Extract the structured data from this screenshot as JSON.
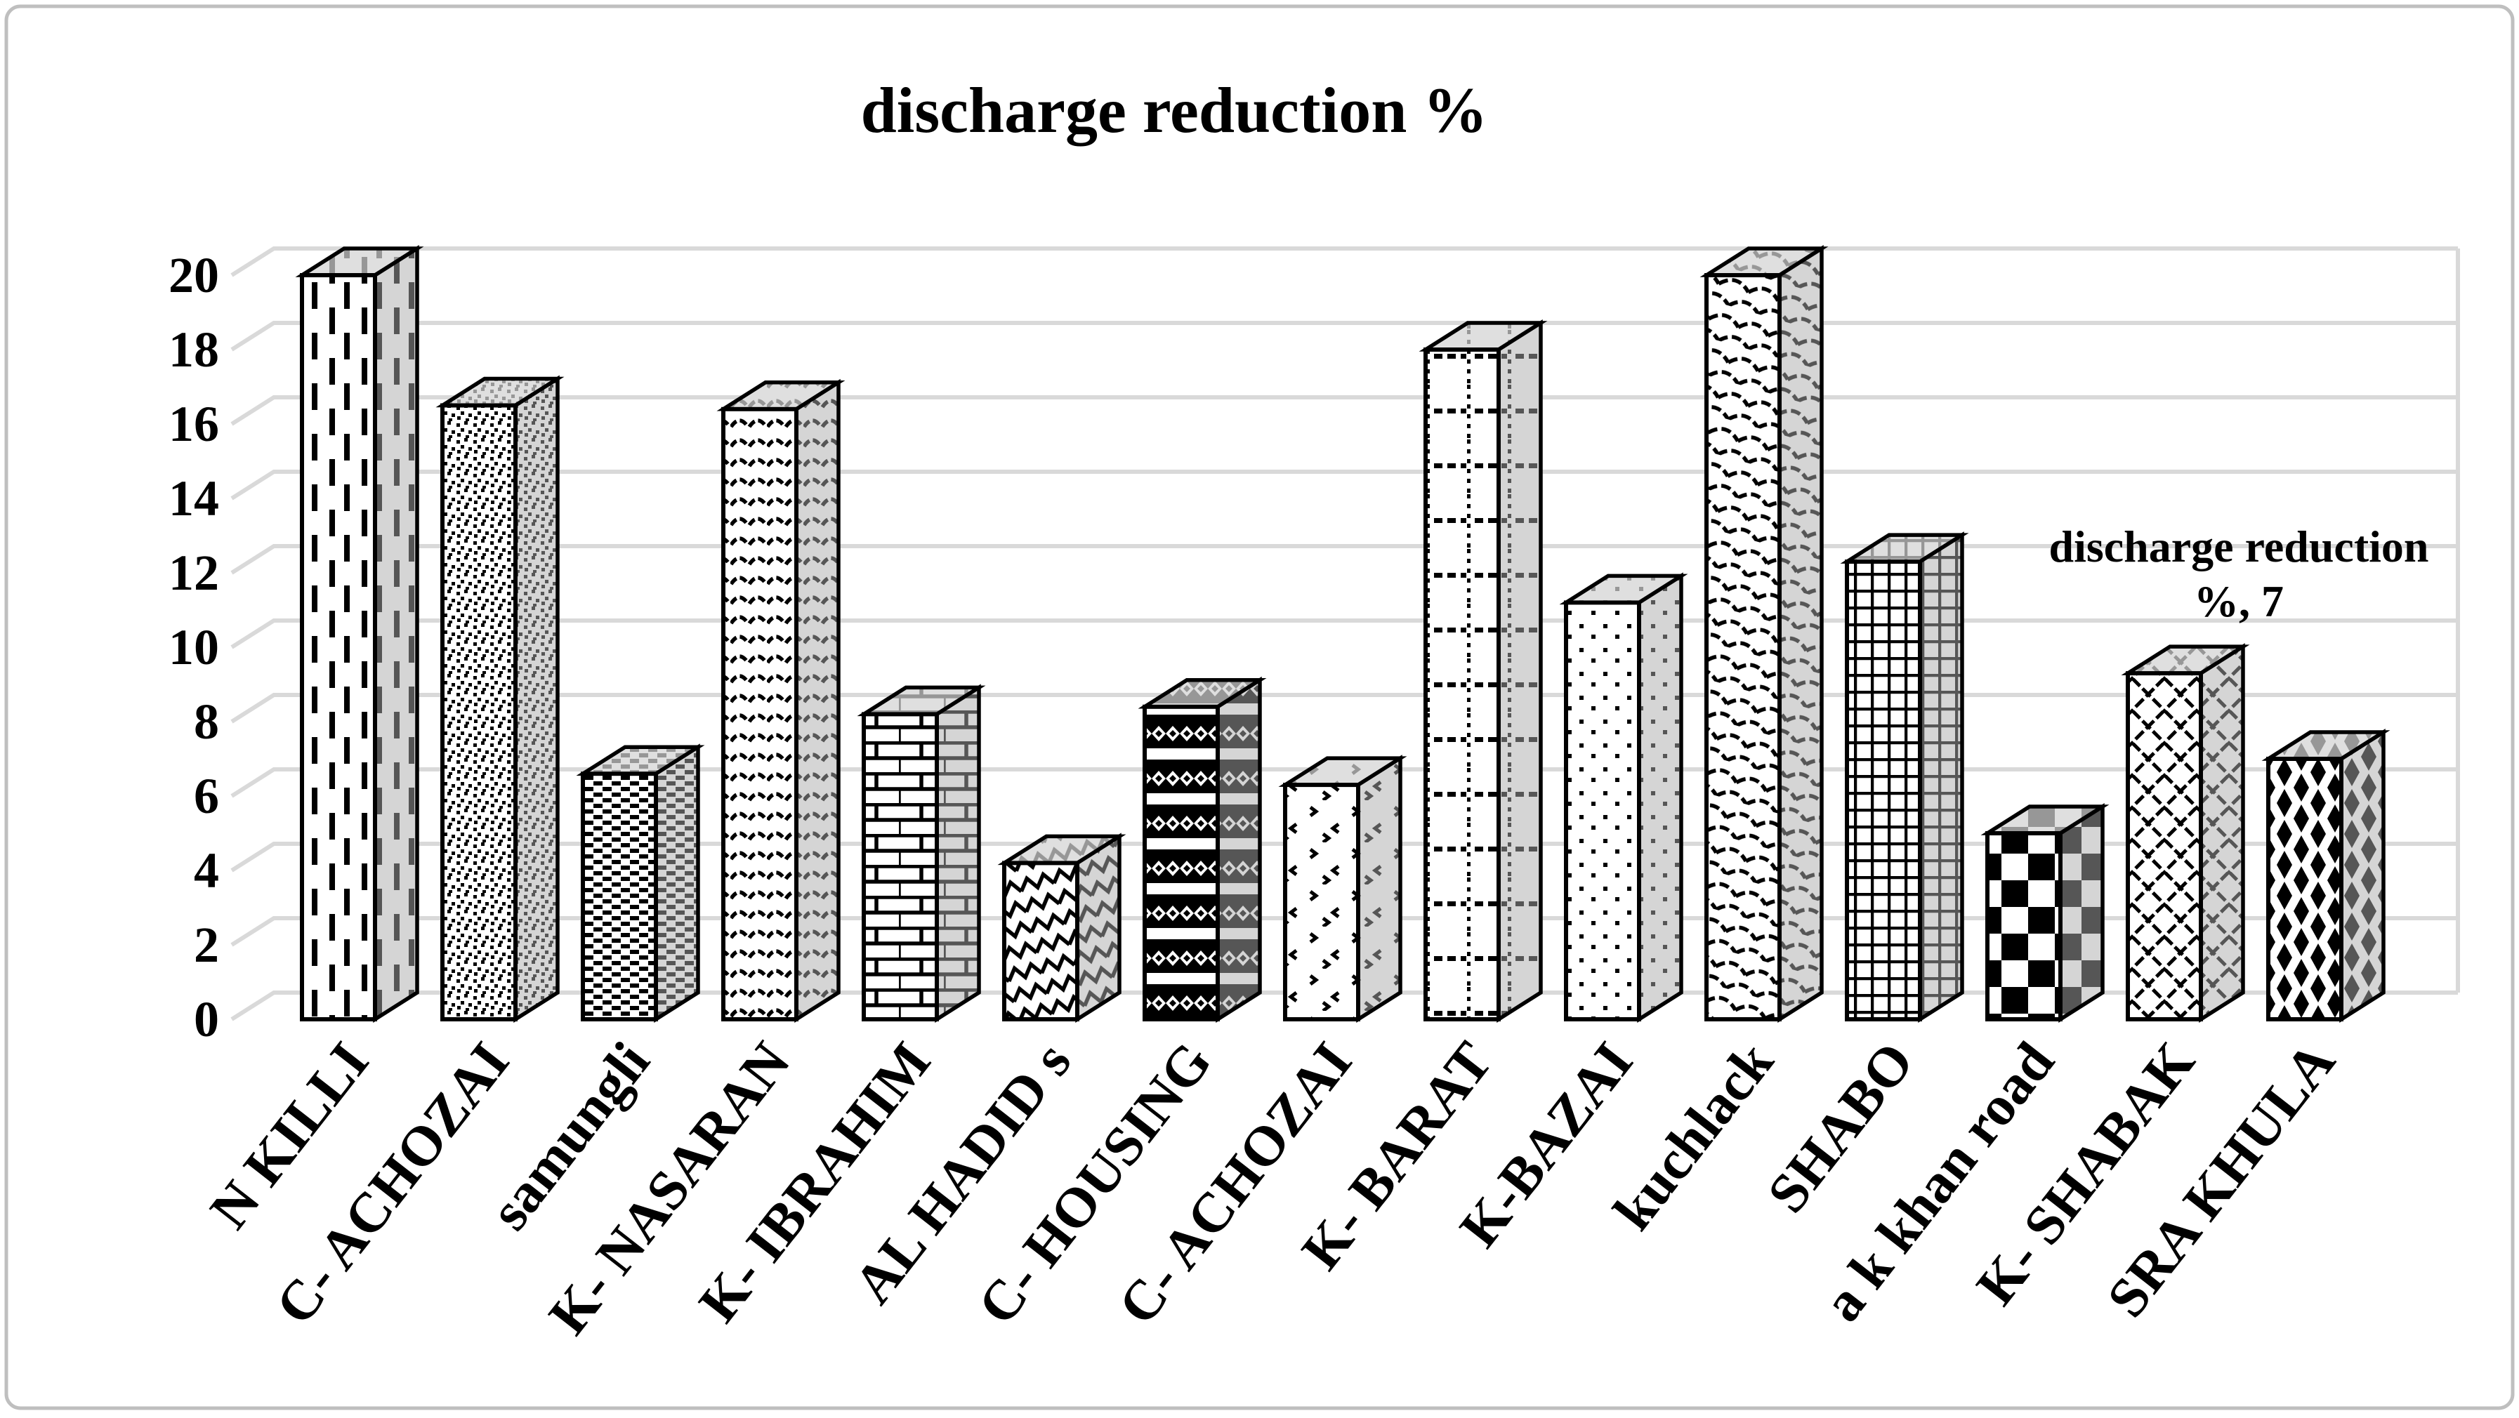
{
  "figure": {
    "title": "discharge reduction %"
  },
  "data_label": {
    "line1": "discharge reduction",
    "line2": "%, 7"
  },
  "colors": {
    "background": "#ffffff",
    "border": "#bfbfbf",
    "gridline": "#d9d9d9",
    "bar_ink": "#000000",
    "bar_side": "#ababab",
    "bar_top": "#d2d2d2"
  },
  "chart_data": {
    "type": "bar",
    "style": "3d-column-pattern-fills",
    "title": "discharge reduction %",
    "series": [
      {
        "name": "discharge reduction %",
        "values": [
          20,
          16.5,
          6.6,
          16.4,
          8.2,
          4.2,
          8.4,
          6.3,
          18,
          11.2,
          20,
          12.3,
          5,
          9.3,
          7
        ]
      }
    ],
    "categories": [
      "N KILLI",
      "C- ACHOZAI",
      "samungli",
      "K- NASARAN",
      "K- IBRAHIM",
      "AL HADID s",
      "C- HOUSING",
      "C- ACHOZAI",
      "K- BARAT",
      "K-BAZAI",
      "kuchlack",
      "SHABO",
      "a k khan road",
      "K- SHABAK",
      "SRA KHULA"
    ],
    "bar_patterns": [
      "vertical-dashes",
      "dense-stipple",
      "dense-dash-rows",
      "horizontal-waves",
      "bricks",
      "diagonal-zigzag",
      "dark-checker-diamond",
      "confetti-chevrons",
      "dotted-columns-dash-rows",
      "sparse-dots",
      "diagonal-scales",
      "fine-grid",
      "big-checkerboard",
      "diamond-lattice",
      "black-diamond-columns"
    ],
    "xlabel": "",
    "ylabel": "",
    "ylim": [
      0,
      20
    ],
    "yticks": [
      0,
      2,
      4,
      6,
      8,
      10,
      12,
      14,
      16,
      18,
      20
    ],
    "grid": true,
    "legend_position": "none",
    "annotated_point": {
      "category": "SRA KHULA",
      "value": 7,
      "label": "discharge reduction %, 7"
    }
  }
}
